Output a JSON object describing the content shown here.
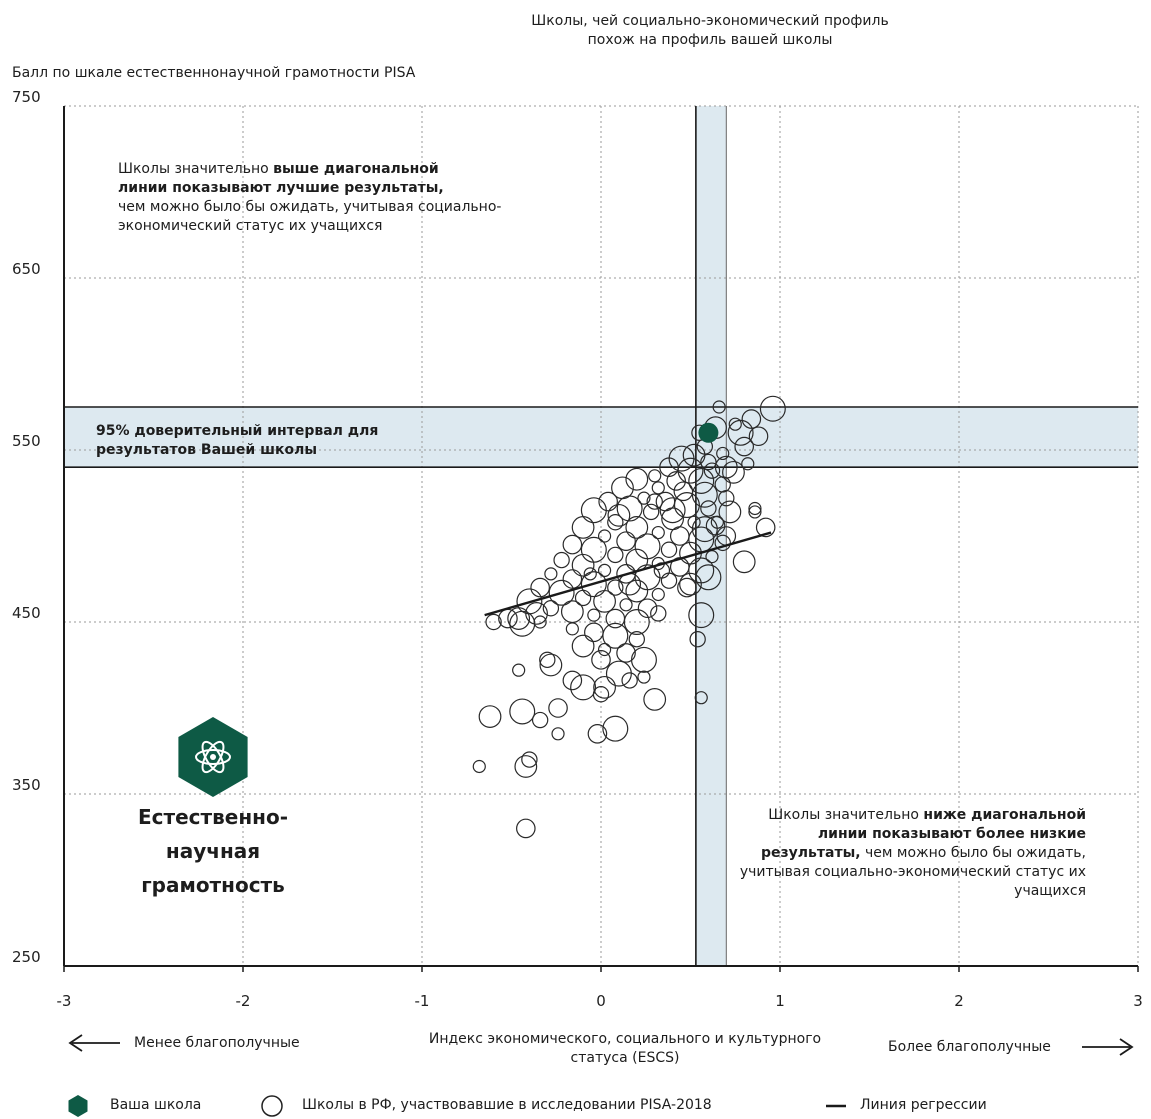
{
  "colors": {
    "accent": "#0e5a45",
    "band": "#dde9f0",
    "axis": "#1a1a1a",
    "grid": "#9a9a9a"
  },
  "header": {
    "similar_profile_line1": "Школы, чей социально-экономический профиль",
    "similar_profile_line2": "похож на профиль вашей школы"
  },
  "annotations": {
    "above": {
      "normal1": "Школы значительно ",
      "bold1": "выше диагональной",
      "bold2": "линии показывают лучшие результаты,",
      "normal2": "чем можно было бы ожидать, учитывая социально-",
      "normal3": "экономический статус их учащихся"
    },
    "below": {
      "normal1": "Школы значительно ",
      "bold1": "ниже диагональной",
      "bold2": "линии показывают более низкие",
      "bold3": "результаты,",
      "normal2": " чем можно было бы ожидать,",
      "normal3": "учитывая социально-экономический статус их",
      "normal4": "учащихся"
    },
    "ci_line1": "95% доверительный интервал для",
    "ci_line2": "результатов Вашей школы"
  },
  "badge": {
    "icon": "atom-icon",
    "line1": "Естественно-",
    "line2": "научная",
    "line3": "грамотность"
  },
  "arrows": {
    "left_label": "Менее благополучные",
    "right_label": "Более благополучные"
  },
  "legend": {
    "your_school": "Ваша школа",
    "schools": "Школы в РФ, участвовавшие в исследовании PISA-2018",
    "regression": "Линия регрессии"
  },
  "chart_data": {
    "type": "scatter",
    "ylabel": "Балл по шкале естественнонаучной грамотности PISA",
    "xlabel_line1": "Индекс экономического, социального и культурного",
    "xlabel_line2": "статуса (ESCS)",
    "xlim": [
      -3,
      3
    ],
    "ylim": [
      250,
      750
    ],
    "x_ticks": [
      -3,
      -2,
      -1,
      0,
      1,
      2,
      3
    ],
    "x_tick_labels": [
      "-3",
      "-2",
      "-1",
      "0",
      "1",
      "2",
      "3"
    ],
    "y_ticks": [
      250,
      350,
      450,
      550,
      650,
      750
    ],
    "y_tick_labels": [
      "250",
      "350",
      "450",
      "550",
      "650",
      "750"
    ],
    "grid": true,
    "your_school": {
      "x": 0.6,
      "y": 560
    },
    "confidence_interval_y": [
      540,
      575
    ],
    "similar_profile_x_range": [
      0.53,
      0.7
    ],
    "regression_line": {
      "x": [
        -0.65,
        0.95
      ],
      "y": [
        454,
        502
      ]
    },
    "schools": [
      [
        0.66,
        575
      ],
      [
        0.84,
        568
      ],
      [
        0.96,
        574
      ],
      [
        0.55,
        560
      ],
      [
        0.64,
        563
      ],
      [
        0.75,
        565
      ],
      [
        0.88,
        558
      ],
      [
        0.78,
        560
      ],
      [
        0.58,
        552
      ],
      [
        0.52,
        547
      ],
      [
        0.68,
        548
      ],
      [
        0.8,
        552
      ],
      [
        0.45,
        545
      ],
      [
        0.6,
        543
      ],
      [
        0.7,
        540
      ],
      [
        0.82,
        542
      ],
      [
        0.38,
        540
      ],
      [
        0.5,
        538
      ],
      [
        0.62,
        538
      ],
      [
        0.74,
        537
      ],
      [
        0.3,
        535
      ],
      [
        0.42,
        532
      ],
      [
        0.56,
        532
      ],
      [
        0.68,
        530
      ],
      [
        0.2,
        533
      ],
      [
        0.32,
        528
      ],
      [
        0.46,
        526
      ],
      [
        0.58,
        524
      ],
      [
        0.7,
        522
      ],
      [
        0.12,
        528
      ],
      [
        0.24,
        522
      ],
      [
        0.36,
        520
      ],
      [
        0.48,
        518
      ],
      [
        0.6,
        516
      ],
      [
        0.72,
        514
      ],
      [
        0.86,
        516
      ],
      [
        0.04,
        520
      ],
      [
        0.16,
        516
      ],
      [
        0.28,
        514
      ],
      [
        0.4,
        510
      ],
      [
        0.52,
        508
      ],
      [
        0.64,
        506
      ],
      [
        -0.04,
        515
      ],
      [
        0.08,
        508
      ],
      [
        0.2,
        505
      ],
      [
        0.32,
        502
      ],
      [
        0.44,
        500
      ],
      [
        0.56,
        498
      ],
      [
        0.68,
        496
      ],
      [
        -0.1,
        505
      ],
      [
        0.02,
        500
      ],
      [
        0.14,
        497
      ],
      [
        0.26,
        494
      ],
      [
        0.38,
        492
      ],
      [
        0.5,
        490
      ],
      [
        0.62,
        488
      ],
      [
        -0.16,
        495
      ],
      [
        -0.04,
        492
      ],
      [
        0.08,
        489
      ],
      [
        0.2,
        486
      ],
      [
        0.32,
        484
      ],
      [
        0.44,
        482
      ],
      [
        0.56,
        480
      ],
      [
        -0.22,
        486
      ],
      [
        -0.1,
        483
      ],
      [
        0.02,
        480
      ],
      [
        0.14,
        478
      ],
      [
        0.26,
        476
      ],
      [
        0.38,
        474
      ],
      [
        0.5,
        472
      ],
      [
        -0.28,
        478
      ],
      [
        -0.16,
        475
      ],
      [
        -0.04,
        472
      ],
      [
        0.08,
        470
      ],
      [
        0.2,
        468
      ],
      [
        0.32,
        466
      ],
      [
        -0.34,
        470
      ],
      [
        -0.22,
        467
      ],
      [
        -0.1,
        464
      ],
      [
        0.02,
        462
      ],
      [
        0.14,
        460
      ],
      [
        0.26,
        458
      ],
      [
        -0.4,
        462
      ],
      [
        -0.28,
        458
      ],
      [
        -0.16,
        456
      ],
      [
        -0.04,
        454
      ],
      [
        0.08,
        452
      ],
      [
        0.2,
        450
      ],
      [
        0.32,
        455
      ],
      [
        -0.46,
        452
      ],
      [
        -0.34,
        450
      ],
      [
        -0.52,
        452
      ],
      [
        -0.44,
        449
      ],
      [
        -0.6,
        450
      ],
      [
        -0.36,
        455
      ],
      [
        -0.16,
        446
      ],
      [
        -0.04,
        444
      ],
      [
        0.08,
        442
      ],
      [
        0.2,
        440
      ],
      [
        -0.1,
        436
      ],
      [
        0.02,
        434
      ],
      [
        0.14,
        432
      ],
      [
        0.24,
        428
      ],
      [
        -0.3,
        428
      ],
      [
        -0.28,
        425
      ],
      [
        -0.46,
        422
      ],
      [
        0.0,
        428
      ],
      [
        0.1,
        420
      ],
      [
        0.16,
        416
      ],
      [
        0.02,
        412
      ],
      [
        0.24,
        418
      ],
      [
        -0.16,
        416
      ],
      [
        -0.1,
        412
      ],
      [
        0.0,
        408
      ],
      [
        0.3,
        405
      ],
      [
        0.56,
        406
      ],
      [
        -0.24,
        400
      ],
      [
        -0.44,
        398
      ],
      [
        -0.34,
        393
      ],
      [
        -0.62,
        395
      ],
      [
        -0.24,
        385
      ],
      [
        -0.02,
        385
      ],
      [
        0.08,
        388
      ],
      [
        -0.4,
        370
      ],
      [
        -0.42,
        366
      ],
      [
        -0.68,
        366
      ],
      [
        -0.42,
        330
      ],
      [
        0.56,
        454
      ],
      [
        0.54,
        440
      ],
      [
        0.8,
        485
      ],
      [
        0.86,
        514
      ],
      [
        0.92,
        505
      ],
      [
        0.4,
        515
      ],
      [
        0.3,
        520
      ],
      [
        0.1,
        512
      ],
      [
        0.65,
        508
      ],
      [
        0.48,
        470
      ],
      [
        0.6,
        476
      ],
      [
        0.34,
        480
      ],
      [
        0.16,
        472
      ],
      [
        -0.06,
        478
      ],
      [
        0.7,
        500
      ],
      [
        0.58,
        504
      ]
    ]
  }
}
